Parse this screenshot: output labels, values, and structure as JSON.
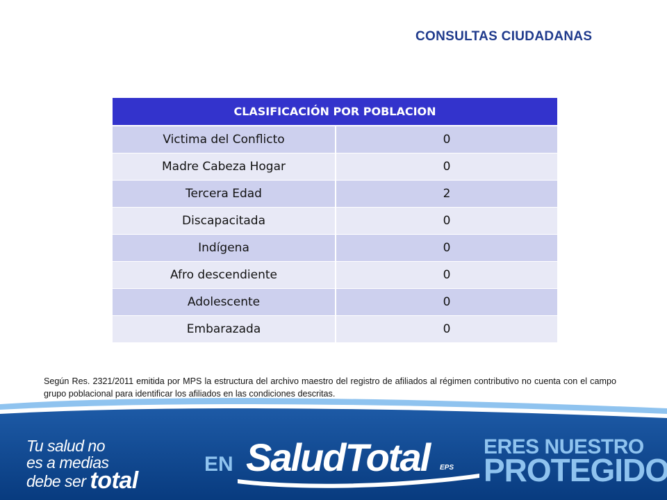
{
  "header": {
    "title": "CONSULTAS CIUDADANAS"
  },
  "table": {
    "heading": "CLASIFICACIÓN POR POBLACION",
    "rows": [
      {
        "label": "Victima del Conflicto",
        "value": "0"
      },
      {
        "label": "Madre Cabeza Hogar",
        "value": "0"
      },
      {
        "label": "Tercera Edad",
        "value": "2"
      },
      {
        "label": "Discapacitada",
        "value": "0"
      },
      {
        "label": "Indígena",
        "value": "0"
      },
      {
        "label": "Afro descendiente",
        "value": "0"
      },
      {
        "label": "Adolescente",
        "value": "0"
      },
      {
        "label": "Embarazada",
        "value": "0"
      }
    ]
  },
  "note": "Según Res. 2321/2011 emitida por MPS la estructura del archivo maestro del registro de afiliados al régimen contributivo no cuenta con el campo grupo poblacional para identificar los afiliados en las condiciones descritas.",
  "footer": {
    "slogan_line1": "Tu salud no",
    "slogan_line2": "es a medias",
    "slogan_line3": "debe ser",
    "slogan_word": "total",
    "connector": "EN",
    "brand_name": "SaludTotal",
    "brand_suffix": "EPS",
    "tagline_line1": "ERES NUESTRO",
    "tagline_line2": "PROTEGIDO",
    "colors": {
      "dark_blue": "#0a3f87",
      "mid_blue": "#1d5aa6",
      "light_blue": "#8fc3ef"
    }
  }
}
